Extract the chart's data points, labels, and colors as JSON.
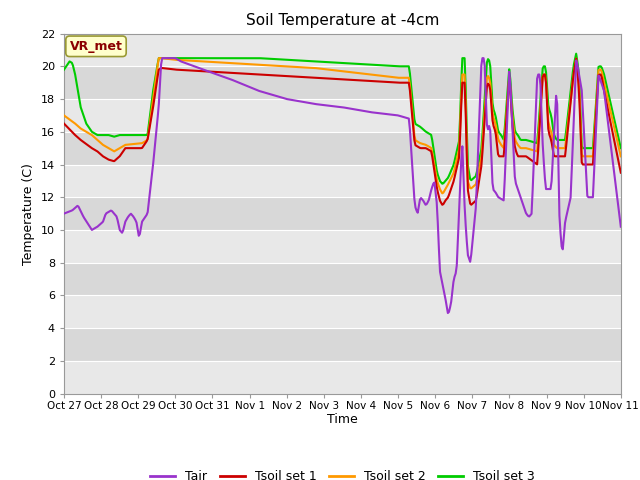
{
  "title": "Soil Temperature at -4cm",
  "xlabel": "Time",
  "ylabel": "Temperature (C)",
  "ylim": [
    0,
    22
  ],
  "yticks": [
    0,
    2,
    4,
    6,
    8,
    10,
    12,
    14,
    16,
    18,
    20,
    22
  ],
  "xtick_labels": [
    "Oct 27",
    "Oct 28",
    "Oct 29",
    "Oct 30",
    "Oct 31",
    "Nov 1",
    "Nov 2",
    "Nov 3",
    "Nov 4",
    "Nov 5",
    "Nov 6",
    "Nov 7",
    "Nov 8",
    "Nov 9",
    "Nov 10",
    "Nov 11"
  ],
  "annotation_text": "VR_met",
  "colors": {
    "Tair": "#9933cc",
    "Tsoil1": "#cc0000",
    "Tsoil2": "#ff9900",
    "Tsoil3": "#00cc00"
  },
  "band_colors": [
    "#e8e8e8",
    "#d8d8d8"
  ],
  "grid_color": "#cccccc",
  "legend_labels": [
    "Tair",
    "Tsoil set 1",
    "Tsoil set 2",
    "Tsoil set 3"
  ],
  "num_points": 500
}
